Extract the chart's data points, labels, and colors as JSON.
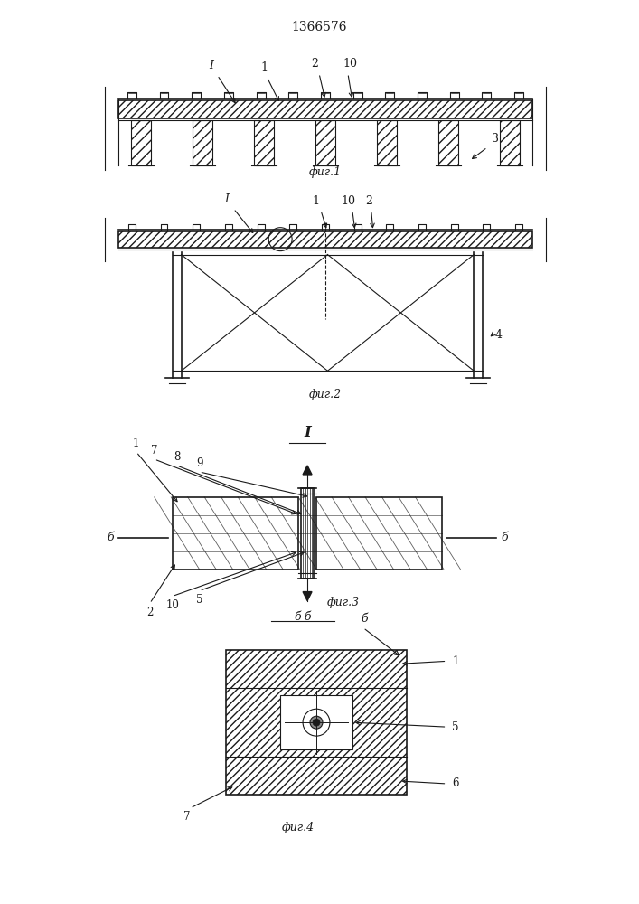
{
  "title": "1366576",
  "bg_color": "#ffffff",
  "line_color": "#1a1a1a",
  "fig1_caption": "фиг.1",
  "fig2_caption": "фиг.2",
  "fig3_caption": "фиг.3",
  "fig4_caption": "фиг.4",
  "label_b": "б",
  "section_bb_label": "б-б"
}
